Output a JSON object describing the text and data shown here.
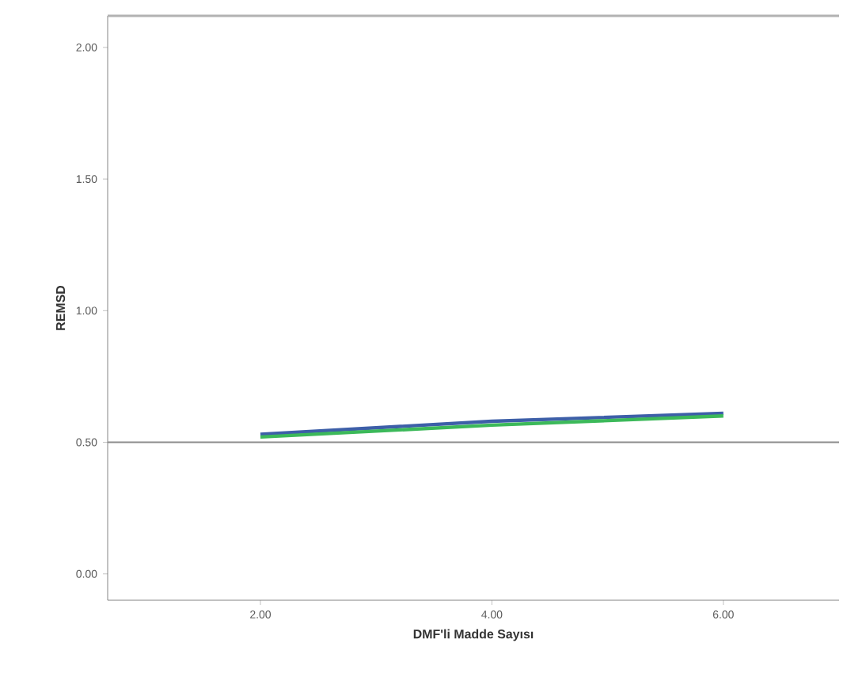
{
  "chart_data": {
    "type": "line",
    "xlabel": "DMF'li Madde Sayısı",
    "ylabel": "REMSD",
    "x": [
      2,
      4,
      6
    ],
    "series": [
      {
        "color": "#3d5fa8",
        "values": [
          0.53,
          0.58,
          0.61
        ]
      },
      {
        "color": "#3cb95a",
        "values": [
          0.52,
          0.565,
          0.6
        ]
      }
    ],
    "xlim": [
      0.68,
      7.0
    ],
    "ylim": [
      -0.1,
      2.12
    ],
    "xticks": [
      {
        "value": 2,
        "label": "2.00"
      },
      {
        "value": 4,
        "label": "4.00"
      },
      {
        "value": 6,
        "label": "6.00"
      }
    ],
    "yticks": [
      {
        "value": 0,
        "label": "0.00"
      },
      {
        "value": 0.5,
        "label": "0.50"
      },
      {
        "value": 1,
        "label": "1.00"
      },
      {
        "value": 1.5,
        "label": "1.50"
      },
      {
        "value": 2,
        "label": "2.00"
      }
    ],
    "ref_lines": [
      {
        "axis": "y",
        "value": 0.5,
        "color": "#8c8c8c"
      }
    ],
    "marker": "none",
    "line_style": "solid"
  }
}
